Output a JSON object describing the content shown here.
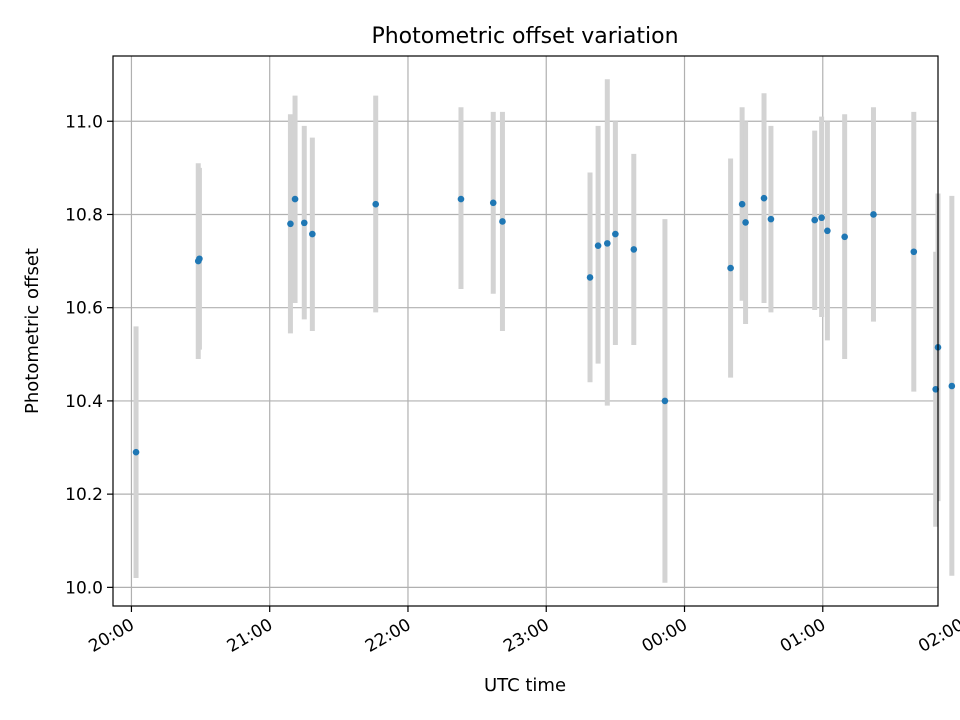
{
  "chart_data": {
    "type": "scatter",
    "title": "Photometric offset variation",
    "xlabel": "UTC time",
    "ylabel": "Photometric offset",
    "x_unit": "minutes",
    "xlim": [
      -8,
      350
    ],
    "ylim": [
      9.96,
      11.14
    ],
    "x_ticks": [
      {
        "value": 0,
        "label": "20:00"
      },
      {
        "value": 60,
        "label": "21:00"
      },
      {
        "value": 120,
        "label": "22:00"
      },
      {
        "value": 180,
        "label": "23:00"
      },
      {
        "value": 240,
        "label": "00:00"
      },
      {
        "value": 300,
        "label": "01:00"
      },
      {
        "value": 360,
        "label": "02:00"
      }
    ],
    "y_ticks": [
      10.0,
      10.2,
      10.4,
      10.6,
      10.8,
      11.0
    ],
    "grid": true,
    "marker_color": "#1f77b4",
    "errorbar_color": "#d3d3d3",
    "points": [
      {
        "x": 2,
        "y": 10.29,
        "ylo": 10.02,
        "yhi": 10.56
      },
      {
        "x": 29,
        "y": 10.7,
        "ylo": 10.49,
        "yhi": 10.91
      },
      {
        "x": 29.5,
        "y": 10.705,
        "ylo": 10.51,
        "yhi": 10.9
      },
      {
        "x": 69,
        "y": 10.78,
        "ylo": 10.545,
        "yhi": 11.015
      },
      {
        "x": 71,
        "y": 10.833,
        "ylo": 10.61,
        "yhi": 11.055
      },
      {
        "x": 75,
        "y": 10.782,
        "ylo": 10.575,
        "yhi": 10.99
      },
      {
        "x": 78.5,
        "y": 10.758,
        "ylo": 10.55,
        "yhi": 10.965
      },
      {
        "x": 106,
        "y": 10.822,
        "ylo": 10.59,
        "yhi": 11.055
      },
      {
        "x": 143,
        "y": 10.833,
        "ylo": 10.64,
        "yhi": 11.03
      },
      {
        "x": 157,
        "y": 10.825,
        "ylo": 10.63,
        "yhi": 11.02
      },
      {
        "x": 161,
        "y": 10.785,
        "ylo": 10.55,
        "yhi": 11.02
      },
      {
        "x": 199,
        "y": 10.665,
        "ylo": 10.44,
        "yhi": 10.89
      },
      {
        "x": 202.5,
        "y": 10.733,
        "ylo": 10.48,
        "yhi": 10.99
      },
      {
        "x": 206.5,
        "y": 10.738,
        "ylo": 10.39,
        "yhi": 11.09
      },
      {
        "x": 210,
        "y": 10.758,
        "ylo": 10.52,
        "yhi": 11.0
      },
      {
        "x": 218,
        "y": 10.725,
        "ylo": 10.52,
        "yhi": 10.93
      },
      {
        "x": 231.5,
        "y": 10.4,
        "ylo": 10.01,
        "yhi": 10.79
      },
      {
        "x": 260,
        "y": 10.685,
        "ylo": 10.45,
        "yhi": 10.92
      },
      {
        "x": 265,
        "y": 10.822,
        "ylo": 10.615,
        "yhi": 11.03
      },
      {
        "x": 266.5,
        "y": 10.783,
        "ylo": 10.565,
        "yhi": 11.0
      },
      {
        "x": 274.5,
        "y": 10.835,
        "ylo": 10.61,
        "yhi": 11.06
      },
      {
        "x": 277.5,
        "y": 10.79,
        "ylo": 10.59,
        "yhi": 10.99
      },
      {
        "x": 296.5,
        "y": 10.788,
        "ylo": 10.595,
        "yhi": 10.98
      },
      {
        "x": 299.5,
        "y": 10.793,
        "ylo": 10.58,
        "yhi": 11.01
      },
      {
        "x": 302,
        "y": 10.765,
        "ylo": 10.53,
        "yhi": 11.0
      },
      {
        "x": 309.5,
        "y": 10.752,
        "ylo": 10.49,
        "yhi": 11.015
      },
      {
        "x": 322,
        "y": 10.8,
        "ylo": 10.57,
        "yhi": 11.03
      },
      {
        "x": 339.5,
        "y": 10.72,
        "ylo": 10.42,
        "yhi": 11.02
      },
      {
        "x": 349,
        "y": 10.425,
        "ylo": 10.13,
        "yhi": 10.72
      },
      {
        "x": 350,
        "y": 10.515,
        "ylo": 10.185,
        "yhi": 10.845
      },
      {
        "x": 356,
        "y": 10.432,
        "ylo": 10.025,
        "yhi": 10.84
      }
    ]
  }
}
